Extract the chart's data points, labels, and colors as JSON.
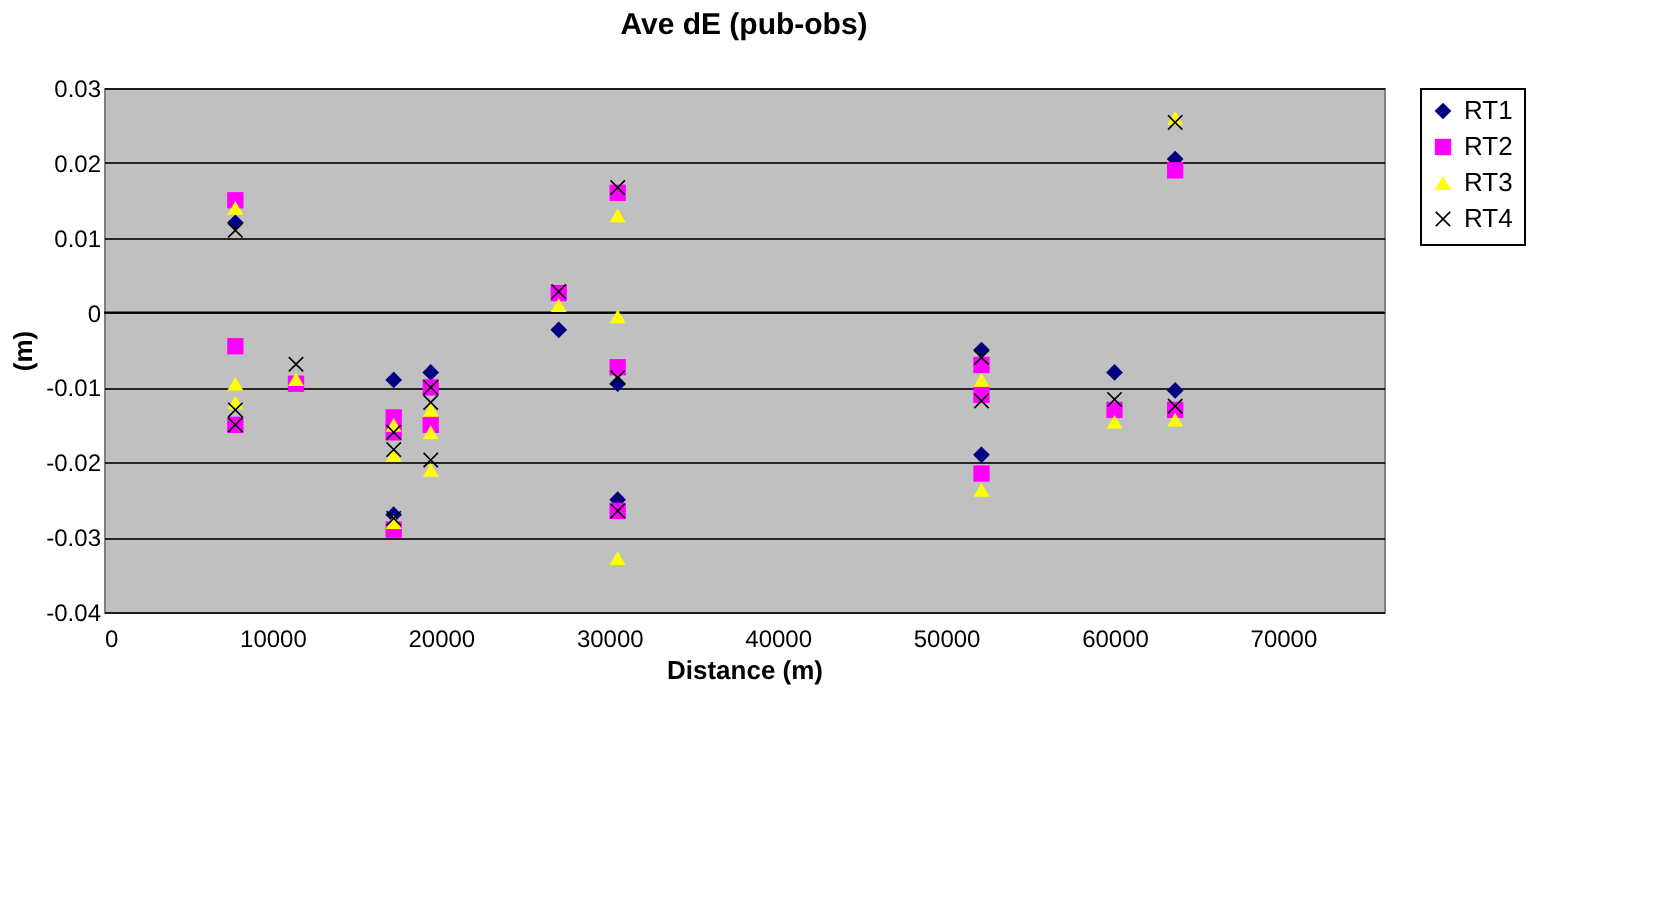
{
  "chart_data": {
    "type": "scatter",
    "title": "Ave dE (pub-obs)",
    "xlabel": "Distance (m)",
    "ylabel": "(m)",
    "xlim": [
      0,
      76000
    ],
    "xticks": [
      0,
      10000,
      20000,
      30000,
      40000,
      50000,
      60000,
      70000
    ],
    "ylim": [
      -0.04,
      0.03
    ],
    "yticks": [
      -0.04,
      -0.03,
      -0.02,
      -0.01,
      0,
      0.01,
      0.02,
      0.03
    ],
    "grid": "y",
    "legend": "right",
    "series": [
      {
        "name": "RT1",
        "color": "#000080",
        "marker": "diamond",
        "x": [
          7800,
          17200,
          17200,
          19400,
          27000,
          30500,
          30500,
          52100,
          52100,
          60000,
          63600,
          63600
        ],
        "values": [
          0.012,
          -0.009,
          -0.027,
          -0.008,
          -0.0023,
          -0.0095,
          -0.025,
          -0.005,
          -0.019,
          -0.008,
          -0.0104,
          0.0205
        ]
      },
      {
        "name": "RT2",
        "color": "#ff00ff",
        "marker": "square",
        "x": [
          7800,
          7800,
          7800,
          11400,
          17200,
          17200,
          17200,
          19400,
          19400,
          27000,
          30500,
          30500,
          30500,
          52100,
          52100,
          52100,
          60000,
          63600,
          63600
        ],
        "values": [
          0.015,
          -0.0045,
          -0.015,
          -0.0095,
          -0.014,
          -0.016,
          -0.029,
          -0.01,
          -0.015,
          0.0026,
          0.016,
          -0.0073,
          -0.0265,
          -0.007,
          -0.011,
          -0.0215,
          -0.013,
          -0.013,
          0.019
        ]
      },
      {
        "name": "RT3",
        "color": "#ffff00",
        "marker": "triangle",
        "x": [
          7800,
          7800,
          7800,
          11400,
          17200,
          17200,
          17200,
          19400,
          19400,
          19400,
          27000,
          30500,
          30500,
          30500,
          52100,
          52100,
          60000,
          63600,
          63600
        ],
        "values": [
          0.014,
          -0.0095,
          -0.012,
          -0.0089,
          -0.015,
          -0.019,
          -0.028,
          -0.013,
          -0.016,
          -0.021,
          0.001,
          0.013,
          -0.0005,
          -0.0328,
          -0.009,
          -0.0237,
          -0.0146,
          -0.0143,
          0.026
        ]
      },
      {
        "name": "RT4",
        "color": "#000000",
        "marker": "cross",
        "x": [
          7800,
          7800,
          7800,
          11400,
          17200,
          17200,
          17200,
          19400,
          19400,
          19400,
          27000,
          30500,
          30500,
          30500,
          52100,
          52100,
          60000,
          63600,
          63600
        ],
        "values": [
          0.011,
          -0.013,
          -0.015,
          -0.0069,
          -0.016,
          -0.0183,
          -0.0275,
          -0.01,
          -0.012,
          -0.0197,
          0.0028,
          0.0167,
          -0.0087,
          -0.0265,
          -0.006,
          -0.0118,
          -0.0116,
          -0.0125,
          0.0254
        ]
      }
    ]
  }
}
